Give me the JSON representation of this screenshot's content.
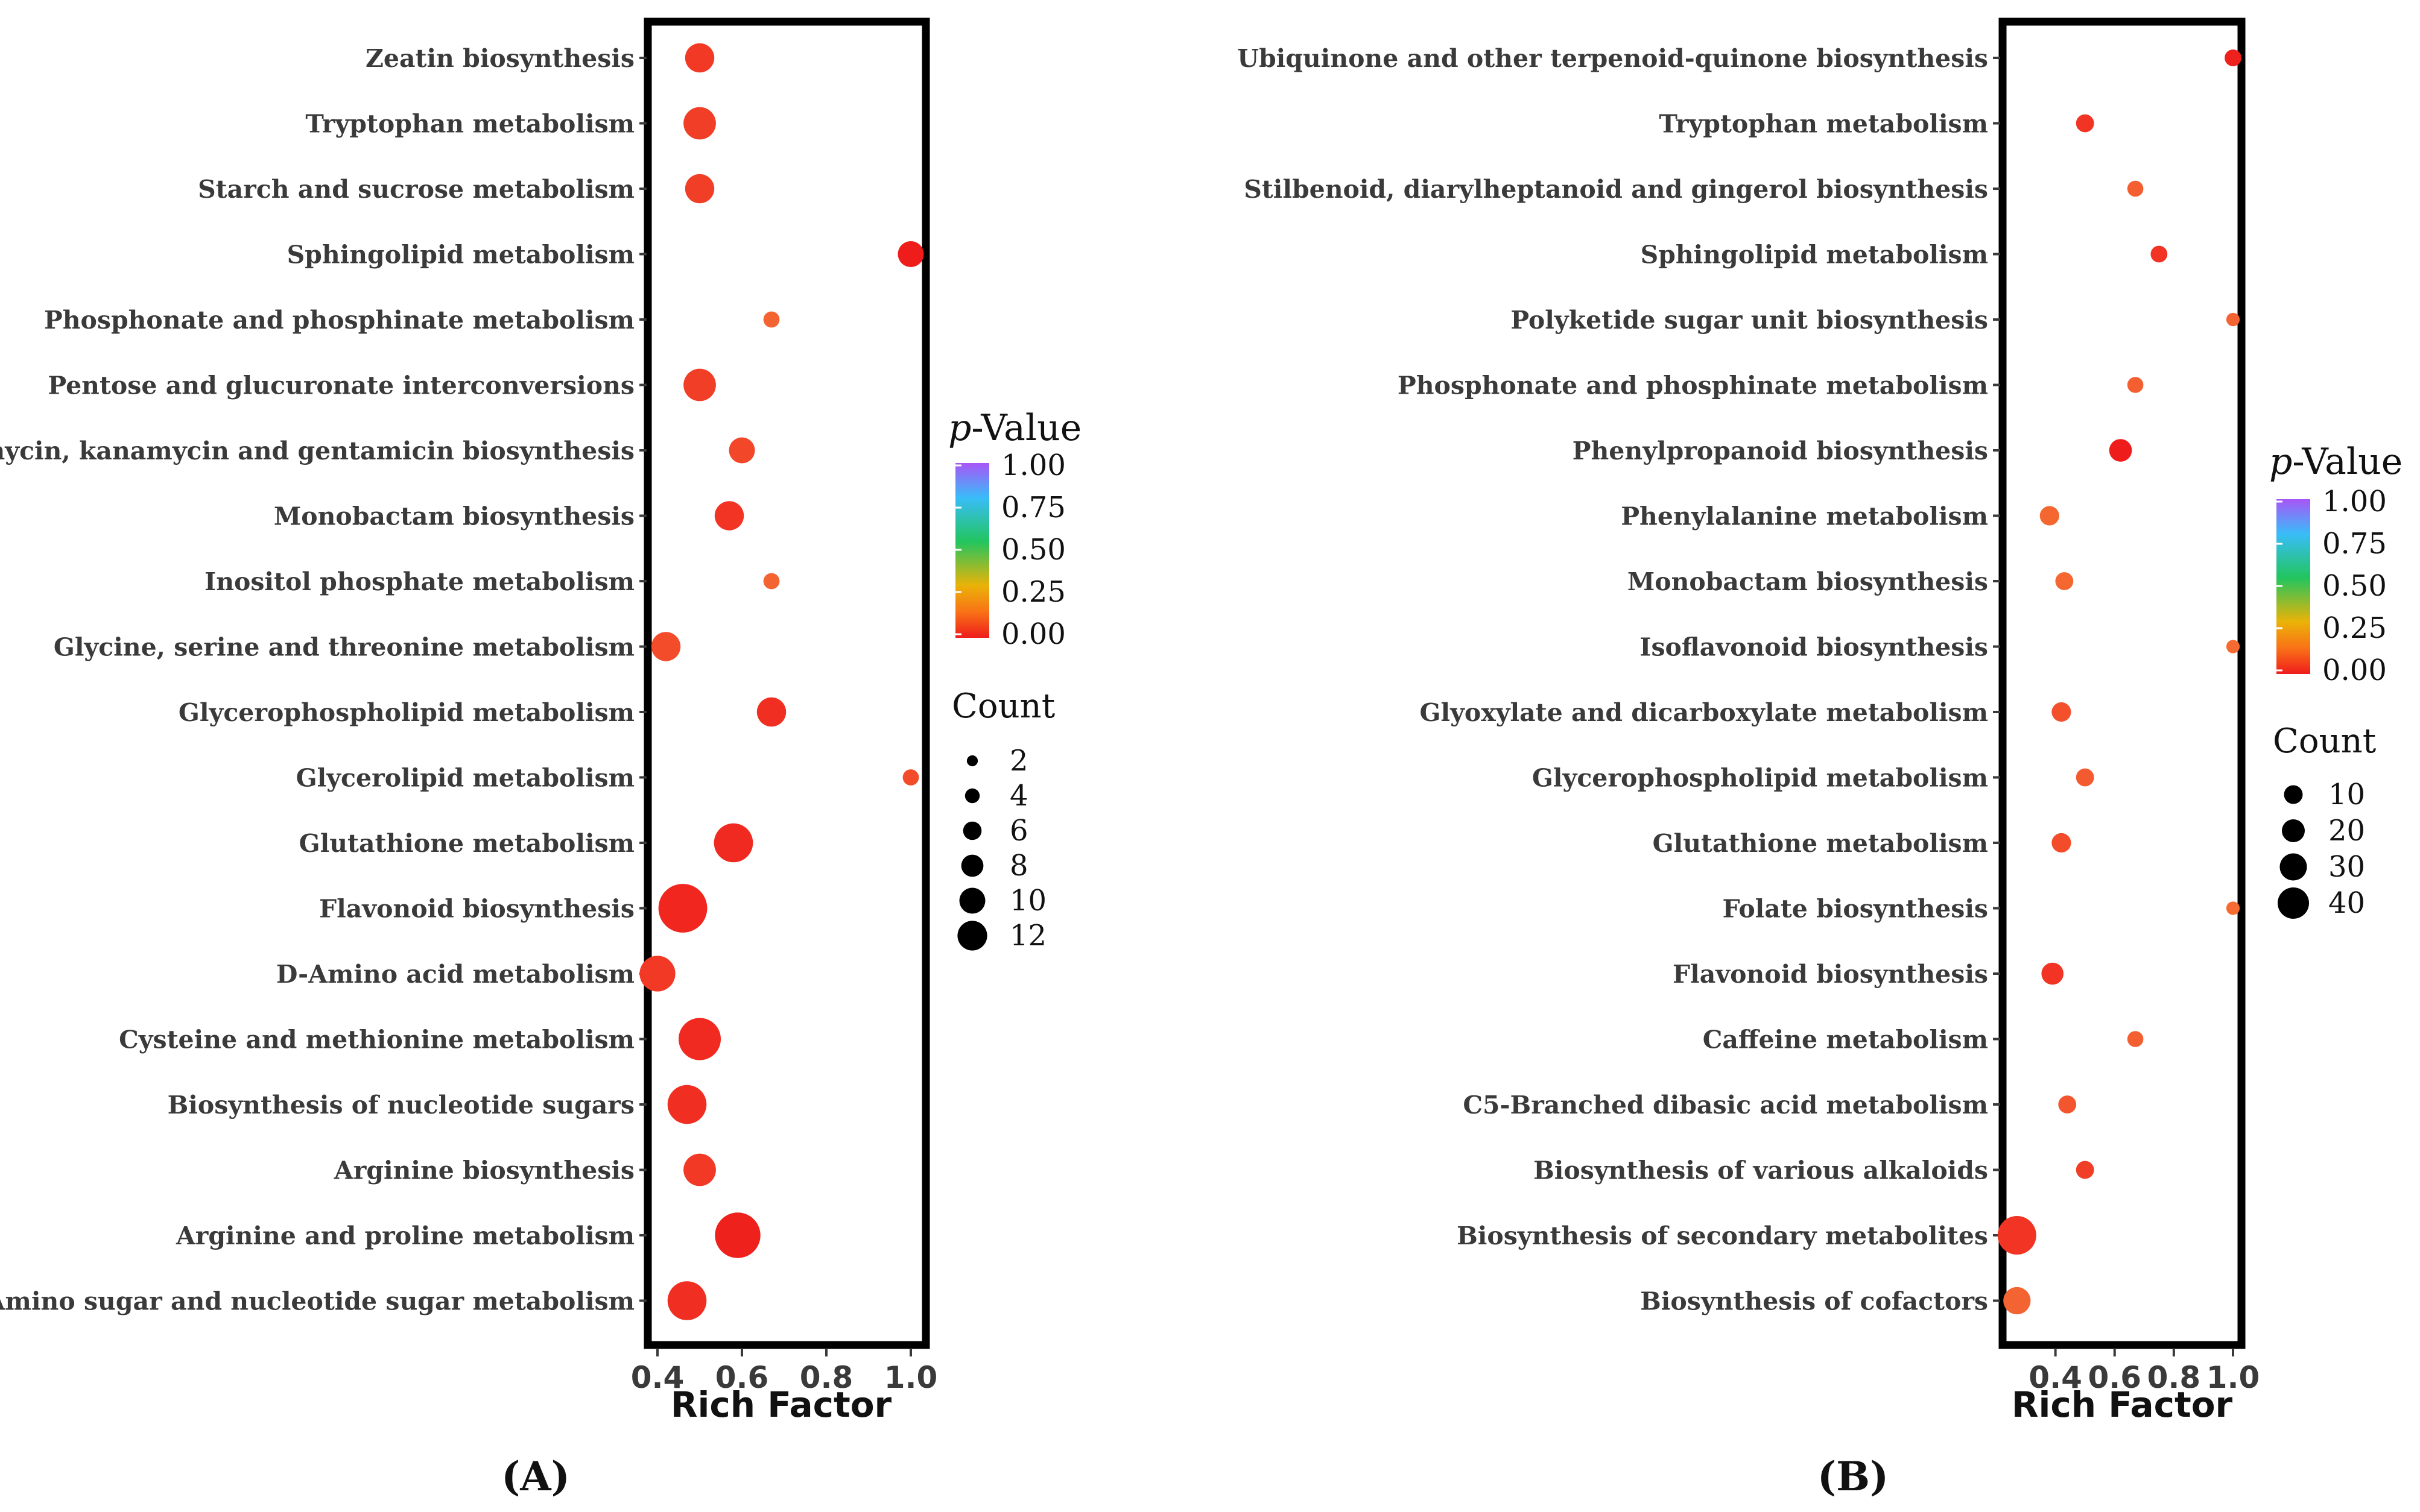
{
  "chart_data": [
    {
      "type": "scatter",
      "panel": "(A)",
      "xlabel": "Rich Factor",
      "xlim": [
        0.4,
        1.0
      ],
      "xticks": [
        "0.4",
        "0.6",
        "0.8",
        "1.0"
      ],
      "legend_color_title_italic": "p",
      "legend_color_title_rest": "-Value",
      "legend_color_ticks": [
        "1.00",
        "0.75",
        "0.50",
        "0.25",
        "0.00"
      ],
      "legend_size_title": "Count",
      "legend_size_values": [
        2,
        4,
        6,
        8,
        10,
        12
      ],
      "points": [
        {
          "label": "Zeatin biosynthesis",
          "x": 0.5,
          "count": 6,
          "p": 0.06
        },
        {
          "label": "Tryptophan metabolism",
          "x": 0.5,
          "count": 7,
          "p": 0.07
        },
        {
          "label": "Starch and sucrose metabolism",
          "x": 0.5,
          "count": 6,
          "p": 0.07
        },
        {
          "label": "Sphingolipid metabolism",
          "x": 1.0,
          "count": 5,
          "p": 0.0
        },
        {
          "label": "Phosphonate and phosphinate metabolism",
          "x": 0.67,
          "count": 2,
          "p": 0.15
        },
        {
          "label": "Pentose and glucuronate interconversions",
          "x": 0.5,
          "count": 7,
          "p": 0.07
        },
        {
          "label": "Neomycin, kanamycin and gentamicin biosynthesis",
          "x": 0.6,
          "count": 5,
          "p": 0.09
        },
        {
          "label": "Monobactam biosynthesis",
          "x": 0.57,
          "count": 6,
          "p": 0.05
        },
        {
          "label": "Inositol phosphate metabolism",
          "x": 0.67,
          "count": 2,
          "p": 0.15
        },
        {
          "label": "Glycine, serine and threonine metabolism",
          "x": 0.42,
          "count": 6,
          "p": 0.1
        },
        {
          "label": "Glycerophospholipid metabolism",
          "x": 0.67,
          "count": 6,
          "p": 0.04
        },
        {
          "label": "Glycerolipid metabolism",
          "x": 1.0,
          "count": 2,
          "p": 0.1
        },
        {
          "label": "Glutathione metabolism",
          "x": 0.58,
          "count": 9,
          "p": 0.03
        },
        {
          "label": "Flavonoid biosynthesis",
          "x": 0.46,
          "count": 12,
          "p": 0.02
        },
        {
          "label": "D-Amino acid metabolism",
          "x": 0.4,
          "count": 8,
          "p": 0.06
        },
        {
          "label": "Cysteine and methionine metabolism",
          "x": 0.5,
          "count": 10,
          "p": 0.03
        },
        {
          "label": "Biosynthesis of nucleotide sugars",
          "x": 0.47,
          "count": 9,
          "p": 0.04
        },
        {
          "label": "Arginine biosynthesis",
          "x": 0.5,
          "count": 7,
          "p": 0.06
        },
        {
          "label": "Arginine and proline metabolism",
          "x": 0.59,
          "count": 11,
          "p": 0.01
        },
        {
          "label": "Amino sugar and nucleotide sugar metabolism",
          "x": 0.47,
          "count": 9,
          "p": 0.04
        }
      ]
    },
    {
      "type": "scatter",
      "panel": "(B)",
      "xlabel": "Rich Factor",
      "xlim": [
        0.25,
        1.0
      ],
      "xticks": [
        "0.4",
        "0.6",
        "0.8",
        "1.0"
      ],
      "legend_color_title_italic": "p",
      "legend_color_title_rest": "-Value",
      "legend_color_ticks": [
        "1.00",
        "0.75",
        "0.50",
        "0.25",
        "0.00"
      ],
      "legend_size_title": "Count",
      "legend_size_values": [
        10,
        20,
        30,
        40
      ],
      "points": [
        {
          "label": "Ubiquinone and other terpenoid-quinone biosynthesis",
          "x": 1.0,
          "count": 7,
          "p": 0.01
        },
        {
          "label": "Tryptophan metabolism",
          "x": 0.5,
          "count": 9,
          "p": 0.05
        },
        {
          "label": "Stilbenoid, diarylheptanoid and gingerol biosynthesis",
          "x": 0.67,
          "count": 6,
          "p": 0.14
        },
        {
          "label": "Sphingolipid metabolism",
          "x": 0.75,
          "count": 7,
          "p": 0.05
        },
        {
          "label": "Polyketide sugar unit biosynthesis",
          "x": 1.0,
          "count": 2,
          "p": 0.15
        },
        {
          "label": "Phosphonate and phosphinate metabolism",
          "x": 0.67,
          "count": 6,
          "p": 0.14
        },
        {
          "label": "Phenylpropanoid biosynthesis",
          "x": 0.62,
          "count": 16,
          "p": 0.0
        },
        {
          "label": "Phenylalanine metabolism",
          "x": 0.38,
          "count": 11,
          "p": 0.16
        },
        {
          "label": "Monobactam biosynthesis",
          "x": 0.43,
          "count": 9,
          "p": 0.16
        },
        {
          "label": "Isoflavonoid biosynthesis",
          "x": 1.0,
          "count": 2,
          "p": 0.17
        },
        {
          "label": "Glyoxylate and dicarboxylate metabolism",
          "x": 0.42,
          "count": 11,
          "p": 0.11
        },
        {
          "label": "Glycerophospholipid metabolism",
          "x": 0.5,
          "count": 9,
          "p": 0.13
        },
        {
          "label": "Glutathione metabolism",
          "x": 0.42,
          "count": 11,
          "p": 0.1
        },
        {
          "label": "Folate biosynthesis",
          "x": 1.0,
          "count": 2,
          "p": 0.17
        },
        {
          "label": "Flavonoid biosynthesis",
          "x": 0.39,
          "count": 15,
          "p": 0.05
        },
        {
          "label": "Caffeine metabolism",
          "x": 0.67,
          "count": 6,
          "p": 0.14
        },
        {
          "label": "C5-Branched dibasic acid metabolism",
          "x": 0.44,
          "count": 9,
          "p": 0.12
        },
        {
          "label": "Biosynthesis of various alkaloids",
          "x": 0.5,
          "count": 9,
          "p": 0.07
        },
        {
          "label": "Biosynthesis of secondary metabolites",
          "x": 0.27,
          "count": 40,
          "p": 0.05
        },
        {
          "label": "Biosynthesis of cofactors",
          "x": 0.27,
          "count": 23,
          "p": 0.15
        }
      ]
    }
  ],
  "captions": {
    "a": "(A)",
    "b": "(B)"
  }
}
